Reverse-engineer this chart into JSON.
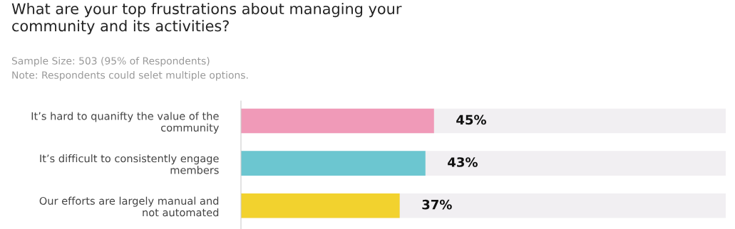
{
  "chart_data": {
    "type": "bar",
    "orientation": "horizontal",
    "title": "What are your top frustrations about managing your\ncommunity and its activities?",
    "subtitle": "Sample Size: 503 (95% of Respondents)",
    "annotations": [
      "Note: Respondents could selet multiple options."
    ],
    "categories": [
      "It’s hard to quanifty the value of the\ncommunity",
      "It’s difficult to consistently engage\nmembers",
      "Our efforts are largely manual and\nnot automated"
    ],
    "values": [
      45,
      43,
      37
    ],
    "colors": [
      "#f09ab8",
      "#6cc6d0",
      "#f2d22e"
    ],
    "value_labels": [
      "45%",
      "43%",
      "37%"
    ],
    "xlim": [
      0,
      113
    ],
    "tick_labels": "y",
    "grid": false,
    "legend": false
  }
}
